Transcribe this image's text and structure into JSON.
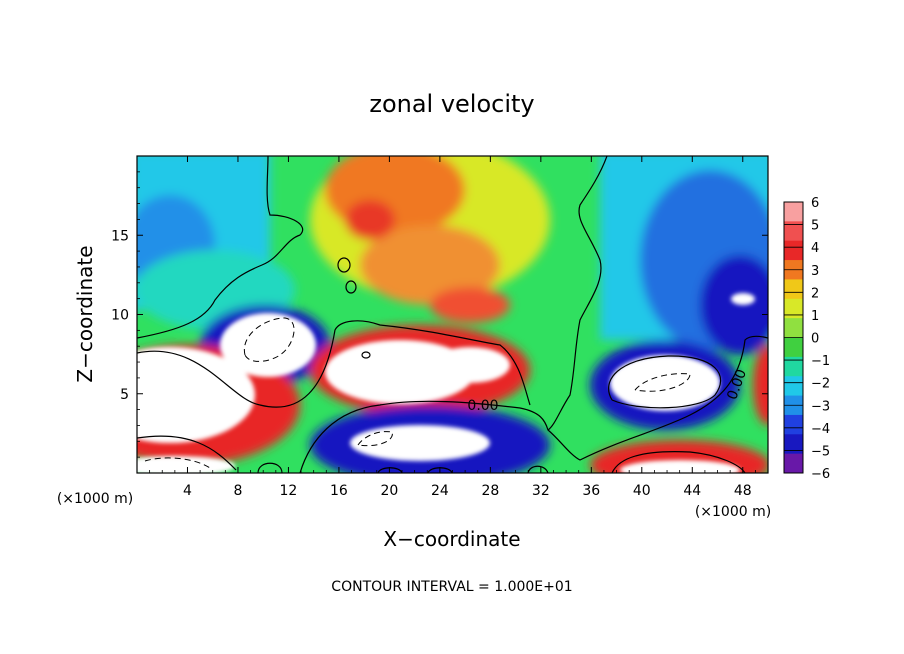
{
  "chart_data": {
    "type": "heatmap",
    "title": "zonal velocity",
    "xlabel": "X−coordinate",
    "ylabel": "Z−coordinate",
    "x_unit_left": "(×1000 m)",
    "x_unit_right": "(×1000 m)",
    "xlim": [
      0,
      50
    ],
    "ylim": [
      0,
      20
    ],
    "x_ticks": [
      4,
      8,
      12,
      16,
      20,
      24,
      28,
      32,
      36,
      40,
      44,
      48
    ],
    "y_ticks": [
      5,
      10,
      15
    ],
    "colorbar": {
      "ticks": [
        6,
        5,
        4,
        3,
        2,
        1,
        0,
        -1,
        -2,
        -3,
        -4,
        -5,
        -6
      ],
      "tick_labels": [
        "6",
        "5",
        "4",
        "3",
        "2",
        "1",
        "0",
        "−1",
        "−2",
        "−3",
        "−4",
        "−5",
        "−6"
      ],
      "colors": [
        "#f8a0a0",
        "#f05050",
        "#e82828",
        "#f07820",
        "#f0c818",
        "#d8e828",
        "#90e040",
        "#40d040",
        "#20d8a0",
        "#20c8e8",
        "#2090e8",
        "#2040e0",
        "#1818c0",
        "#6818a8"
      ],
      "saturated_high": "#ffffff"
    },
    "contour_label": "0.00",
    "footer": "CONTOUR INTERVAL = 1.000E+01"
  }
}
